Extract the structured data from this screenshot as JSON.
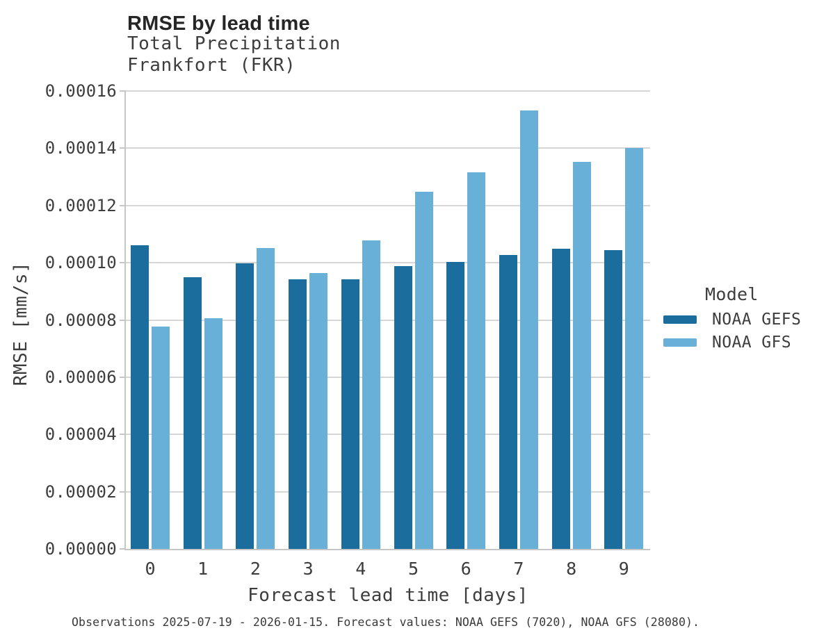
{
  "chart": {
    "title": "RMSE by lead time",
    "subtitle_line1": "Total Precipitation",
    "subtitle_line2": "Frankfort (FKR)",
    "x_axis_label": "Forecast lead time [days]",
    "y_axis_label": "RMSE [mm/s]",
    "caption": "Observations 2025-07-19 - 2026-01-15. Forecast values: NOAA GEFS (7020), NOAA GFS (28080).",
    "legend": {
      "title": "Model"
    }
  },
  "chart_data": {
    "type": "bar",
    "title": "RMSE by lead time",
    "subtitle": "Total Precipitation — Frankfort (FKR)",
    "xlabel": "Forecast lead time [days]",
    "ylabel": "RMSE [mm/s]",
    "categories": [
      0,
      1,
      2,
      3,
      4,
      5,
      6,
      7,
      8,
      9
    ],
    "series": [
      {
        "name": "NOAA GEFS",
        "color": "#1b6d9d",
        "values": [
          0.000106,
          9.5e-05,
          9.97e-05,
          9.42e-05,
          9.42e-05,
          9.88e-05,
          0.0001003,
          0.0001026,
          0.0001048,
          0.0001044
        ]
      },
      {
        "name": "NOAA GFS",
        "color": "#69b0d8",
        "values": [
          7.78e-05,
          8.06e-05,
          0.0001052,
          9.65e-05,
          0.0001077,
          0.0001248,
          0.0001317,
          0.0001533,
          0.0001353,
          0.00014
        ]
      }
    ],
    "ylim": [
      0,
      0.00016
    ],
    "ytick_step": 2e-05,
    "ytick_labels": [
      "0.00000",
      "0.00002",
      "0.00004",
      "0.00006",
      "0.00008",
      "0.00010",
      "0.00012",
      "0.00014",
      "0.00016"
    ],
    "grid": true,
    "legend_title": "Model",
    "legend_position": "right"
  }
}
